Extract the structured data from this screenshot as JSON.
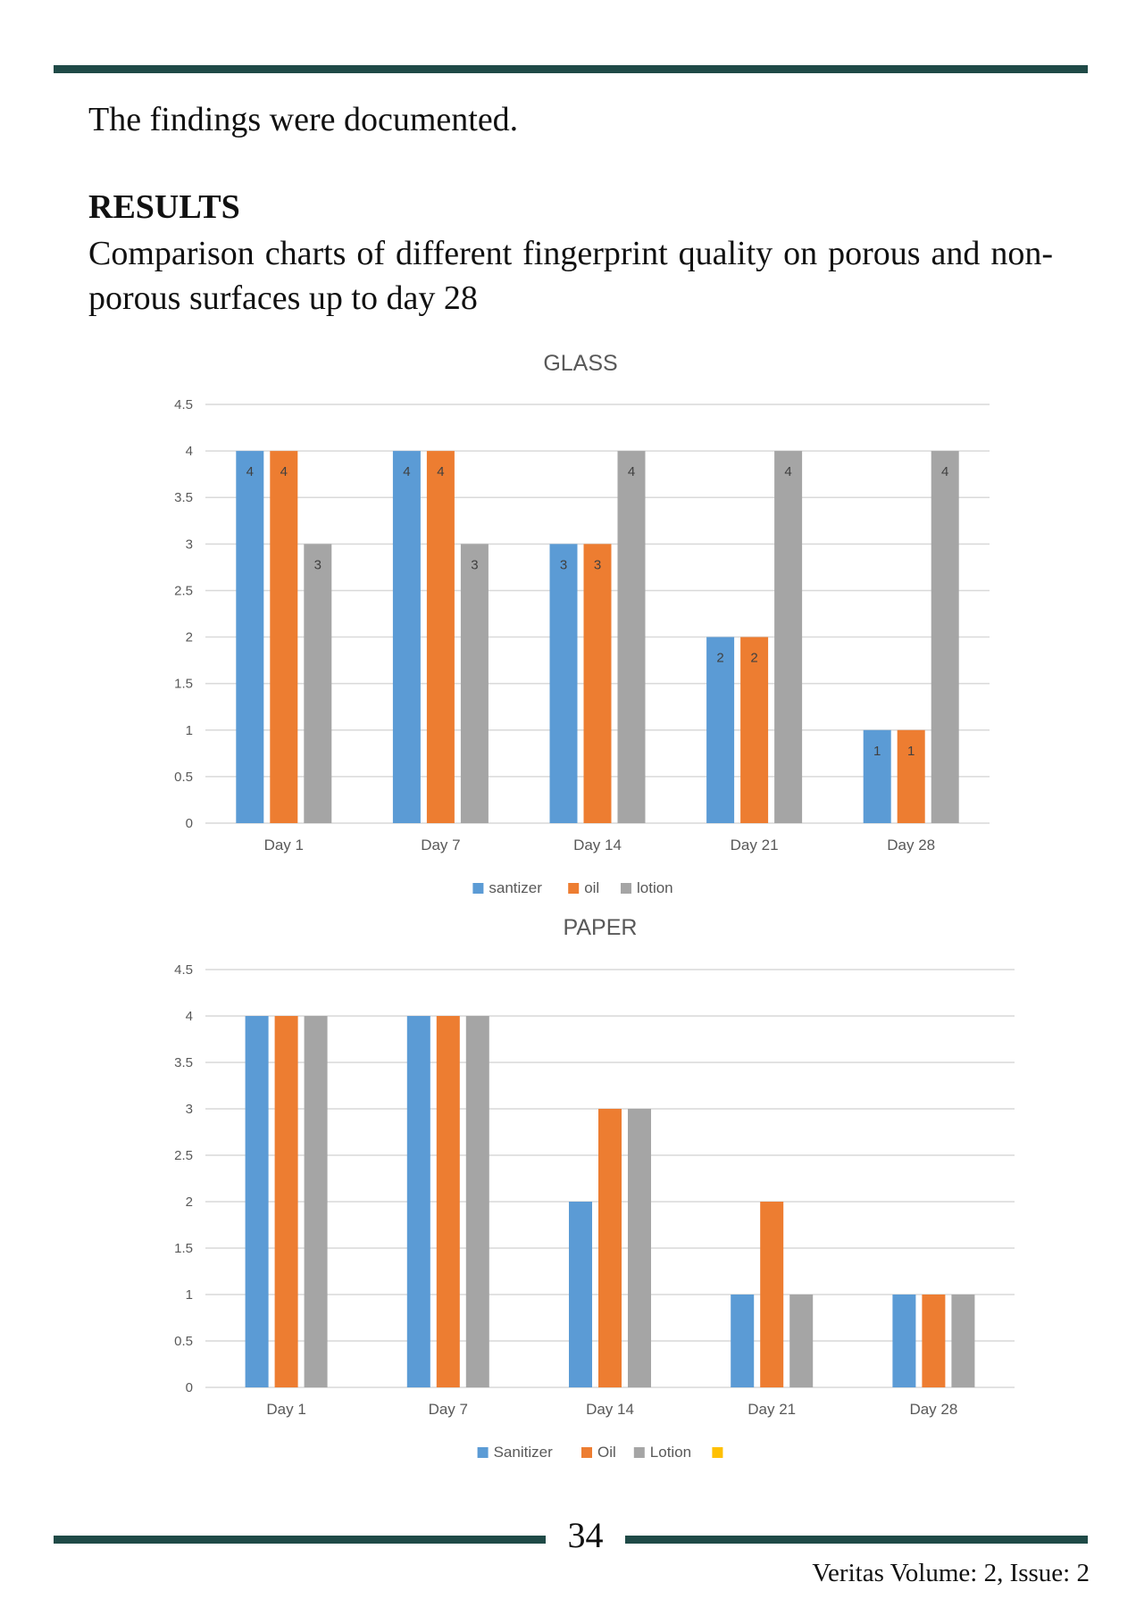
{
  "body": {
    "findings": "The findings were documented.",
    "results_heading": "RESULTS",
    "caption": "Comparison charts of different fingerprint quality on porous and non-porous surfaces up to day 28"
  },
  "footer": {
    "page_number": "34",
    "journal": "Veritas Volume: 2, Issue: 2"
  },
  "colors": {
    "rule": "#1f4a47",
    "series_blue": "#5b9bd5",
    "series_orange": "#ed7d31",
    "series_gray": "#a5a5a5",
    "series_yellow": "#ffc000"
  },
  "chart_data": [
    {
      "type": "bar",
      "title": "GLASS",
      "categories": [
        "Day 1",
        "Day 7",
        "Day 14",
        "Day 21",
        "Day 28"
      ],
      "series": [
        {
          "name": "santizer",
          "color": "#5b9bd5",
          "values": [
            4,
            4,
            3,
            2,
            1
          ]
        },
        {
          "name": "oil",
          "color": "#ed7d31",
          "values": [
            4,
            4,
            3,
            2,
            1
          ]
        },
        {
          "name": "lotion",
          "color": "#a5a5a5",
          "values": [
            3,
            3,
            4,
            4,
            4
          ]
        }
      ],
      "ylim": [
        0,
        4.5
      ],
      "yticks": [
        "0",
        "0.5",
        "1",
        "1.5",
        "2",
        "2.5",
        "3",
        "3.5",
        "4",
        "4.5"
      ],
      "data_labels": true,
      "grid": true,
      "legend": "bottom"
    },
    {
      "type": "bar",
      "title": "PAPER",
      "categories": [
        "Day 1",
        "Day 7",
        "Day 14",
        "Day 21",
        "Day 28"
      ],
      "series": [
        {
          "name": "Sanitizer",
          "color": "#5b9bd5",
          "values": [
            4,
            4,
            2,
            1,
            1
          ]
        },
        {
          "name": "Oil",
          "color": "#ed7d31",
          "values": [
            4,
            4,
            3,
            2,
            1
          ]
        },
        {
          "name": "Lotion",
          "color": "#a5a5a5",
          "values": [
            4,
            4,
            3,
            1,
            1
          ]
        }
      ],
      "legend_extra_swatch": "#ffc000",
      "ylim": [
        0,
        4.5
      ],
      "yticks": [
        "0",
        "0.5",
        "1",
        "1.5",
        "2",
        "2.5",
        "3",
        "3.5",
        "4",
        "4.5"
      ],
      "data_labels": false,
      "grid": true,
      "legend": "bottom"
    }
  ]
}
